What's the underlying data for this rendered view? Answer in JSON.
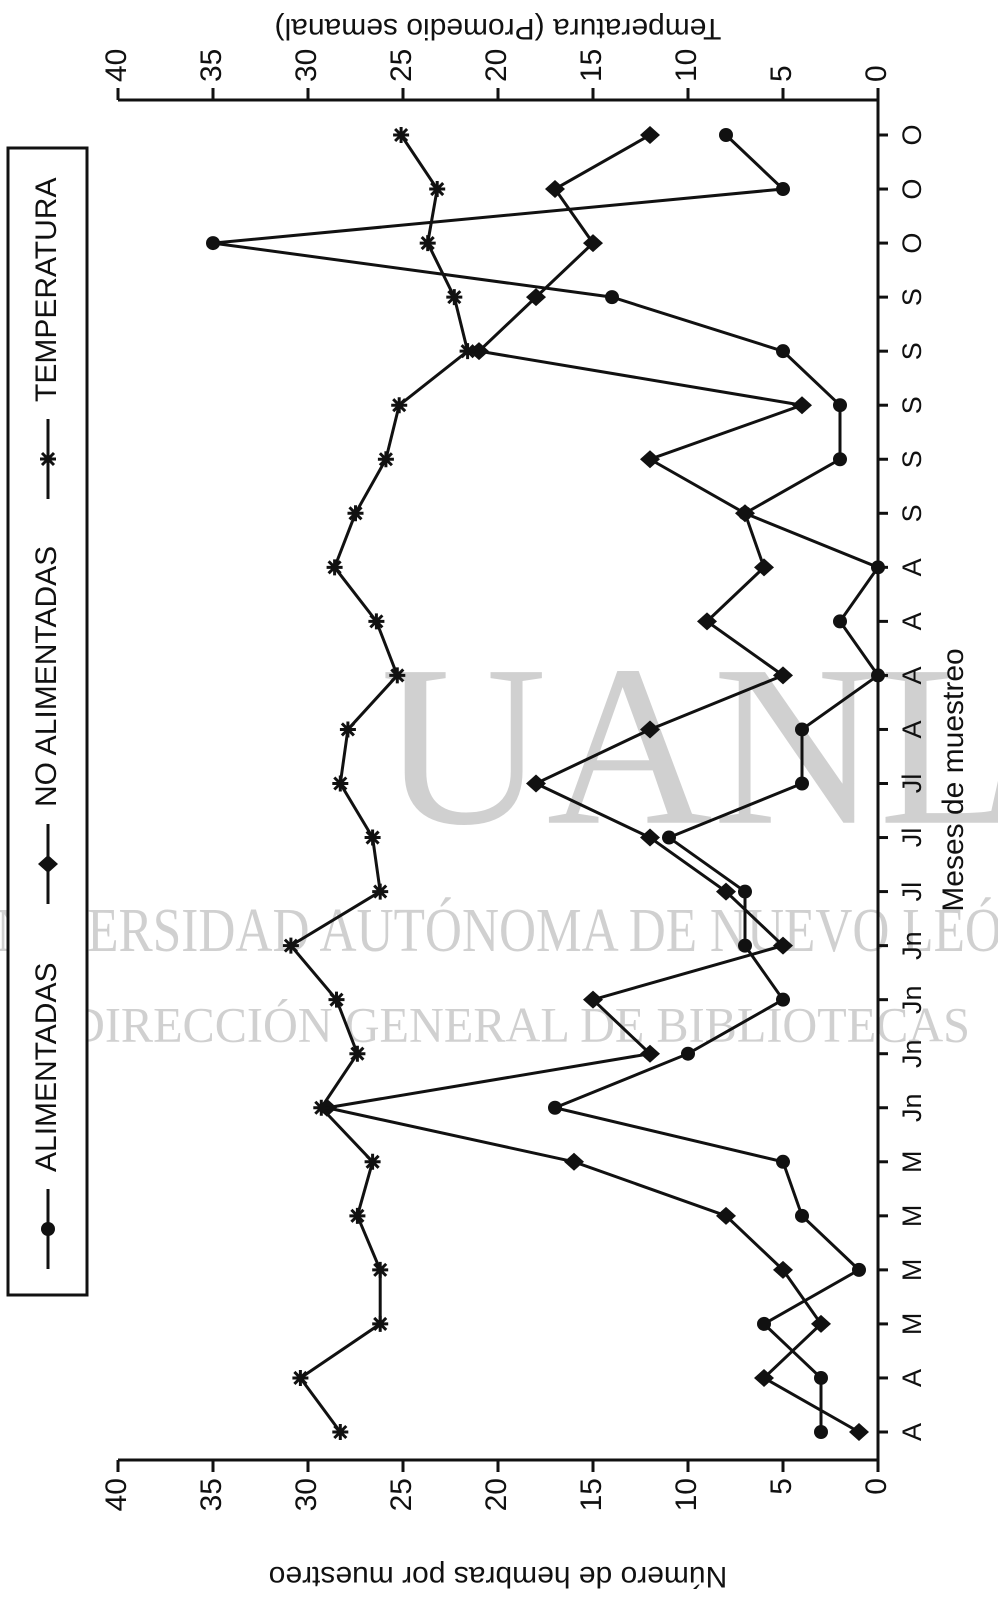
{
  "chart_data": {
    "type": "line",
    "xlabel": "Meses de muestreo",
    "ylabel": "Número de hembras por muestreo",
    "y2label": "Temperatura (Promedio semanal)",
    "categories": [
      "A",
      "A",
      "M",
      "M",
      "M",
      "M",
      "Jn",
      "Jn",
      "Jn",
      "Jn",
      "Jl",
      "Jl",
      "Jl",
      "A",
      "A",
      "A",
      "A",
      "S",
      "S",
      "S",
      "S",
      "S",
      "O",
      "O",
      "O"
    ],
    "series": [
      {
        "name": "ALIMENTADAS",
        "color": "#111111",
        "marker": "circle",
        "values": [
          3,
          3,
          6,
          1,
          4,
          5,
          17,
          10,
          5,
          7,
          7,
          11,
          4,
          4,
          0,
          2,
          0,
          7,
          2,
          2,
          5,
          14,
          35,
          5,
          8
        ]
      },
      {
        "name": "NO ALIMENTADAS",
        "color": "#111111",
        "marker": "diamond",
        "values": [
          1,
          6,
          3,
          5,
          8,
          16,
          29,
          12,
          15,
          5,
          8,
          12,
          18,
          12,
          5,
          9,
          6,
          7,
          12,
          4,
          21,
          18,
          15,
          17,
          12
        ]
      },
      {
        "name": "TEMPERATURA",
        "color": "#111111",
        "marker": "asterisk",
        "axis": "y2",
        "values": [
          28.3,
          30.4,
          26.2,
          26.2,
          27.4,
          26.6,
          29.3,
          27.4,
          28.5,
          30.9,
          26.2,
          26.6,
          28.3,
          27.9,
          25.3,
          26.4,
          28.6,
          27.5,
          25.9,
          25.2,
          21.6,
          22.3,
          23.7,
          23.2,
          25.1
        ]
      }
    ],
    "ylim": [
      0,
      40
    ],
    "yticks": [
      0,
      5,
      10,
      15,
      20,
      25,
      30,
      35,
      40
    ],
    "y2lim": [
      0,
      40
    ],
    "y2ticks": [
      0,
      5,
      10,
      15,
      20,
      25,
      30,
      35,
      40
    ],
    "legend": "top"
  },
  "watermark": [
    "UANL",
    "UNIVERSIDAD AUTÓNOMA DE NUEVO LEÓN",
    "DIRECCIÓN GENERAL DE BIBLIOTECAS"
  ]
}
